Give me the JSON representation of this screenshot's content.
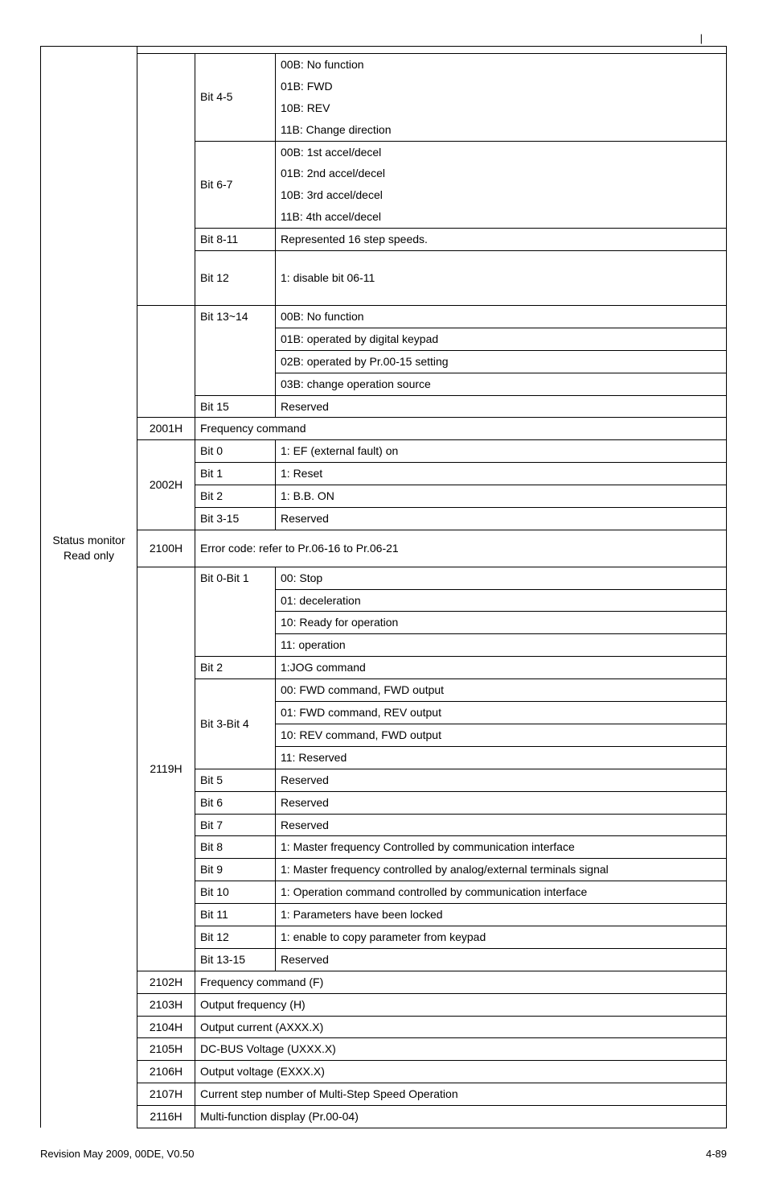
{
  "corner_mark": "|",
  "left_label": "Status monitor Read only",
  "rows": {
    "bit45_label": "Bit 4-5",
    "bit45_1": "00B: No function",
    "bit45_2": "01B: FWD",
    "bit45_3": "10B: REV",
    "bit45_4": "11B: Change direction",
    "bit67_label": "Bit 6-7",
    "bit67_1": "00B: 1st accel/decel",
    "bit67_2": "01B: 2nd accel/decel",
    "bit67_3": "10B: 3rd accel/decel",
    "bit67_4": "11B: 4th accel/decel",
    "bit811_label": "Bit 8-11",
    "bit811_desc": "Represented 16 step speeds.",
    "bit12_label": "Bit 12",
    "bit12_desc": "1: disable bit 06-11",
    "bit1314_label": "Bit 13~14",
    "bit1314_1": "00B: No function",
    "bit1314_2": "01B: operated by digital keypad",
    "bit1314_3": "02B: operated by Pr.00-15 setting",
    "bit1314_4": "03B: change operation source",
    "bit15_label": "Bit 15",
    "bit15_desc": "Reserved",
    "addr_2001": "2001H",
    "freq_cmd": "Frequency command",
    "addr_2002": "2002H",
    "b0_label": "Bit 0",
    "b0_desc": "1: EF (external fault) on",
    "b1_label": "Bit 1",
    "b1_desc": "1: Reset",
    "b2a_label": "Bit 2",
    "b2a_desc": "1: B.B. ON",
    "b315_label": "Bit 3-15",
    "b315_desc": "Reserved",
    "addr_2100": "2100H",
    "err_code": "Error code: refer to Pr.06-16 to Pr.06-21",
    "addr_2119": "2119H",
    "b01_label": "Bit 0-Bit 1",
    "b01_1": "00: Stop",
    "b01_2": "01: deceleration",
    "b01_3": "10: Ready for operation",
    "b01_4": "11: operation",
    "b2b_label": "Bit 2",
    "b2b_desc": "1:JOG command",
    "b34_label": "Bit 3-Bit 4",
    "b34_1": "00: FWD command, FWD output",
    "b34_2": "01: FWD command, REV output",
    "b34_3": "10: REV command, FWD output",
    "b34_4": "11: Reserved",
    "b5_label": "Bit 5",
    "b5_desc": "Reserved",
    "b6_label": "Bit 6",
    "b6_desc": "Reserved",
    "b7_label": "Bit 7",
    "b7_desc": "Reserved",
    "b8_label": "Bit 8",
    "b8_desc": "1: Master frequency Controlled by communication interface",
    "b9_label": "Bit 9",
    "b9_desc": "1: Master frequency controlled by analog/external terminals signal",
    "b10_label": "Bit 10",
    "b10_desc": "1: Operation command controlled by communication interface",
    "b11_label": "Bit 11",
    "b11_desc": "1: Parameters have been locked",
    "b12b_label": "Bit 12",
    "b12b_desc": "1: enable to copy parameter from keypad",
    "b1315_label": "Bit 13-15",
    "b1315_desc": "Reserved",
    "addr_2102": "2102H",
    "d2102": "Frequency command (F)",
    "addr_2103": "2103H",
    "d2103": "Output frequency (H)",
    "addr_2104": "2104H",
    "d2104": "Output current (AXXX.X)",
    "addr_2105": "2105H",
    "d2105": "DC-BUS Voltage (UXXX.X)",
    "addr_2106": "2106H",
    "d2106": "Output voltage (EXXX.X)",
    "addr_2107": "2107H",
    "d2107": "Current step number of Multi-Step Speed Operation",
    "addr_2116": "2116H",
    "d2116": "Multi-function display (Pr.00-04)"
  },
  "footer_left": "Revision May 2009, 00DE, V0.50",
  "footer_right": "4-89",
  "style": {
    "border_color": "#000000",
    "background": "#ffffff",
    "font_size": 14
  }
}
